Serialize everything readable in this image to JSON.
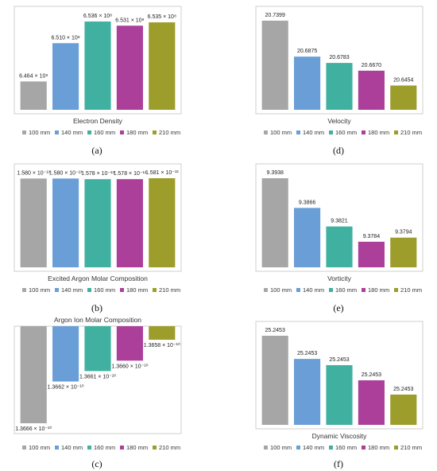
{
  "colors": [
    "#a6a6a6",
    "#6a9ed6",
    "#40b0a0",
    "#ab3f9a",
    "#9d9d2c"
  ],
  "legend": [
    "100 mm",
    "140 mm",
    "160 mm",
    "180 mm",
    "210 mm"
  ],
  "chart_data": [
    {
      "type": "bar",
      "panel": "a",
      "title": "Electron Density",
      "categories": [
        "100 mm",
        "140 mm",
        "160 mm",
        "180 mm",
        "210 mm"
      ],
      "values": [
        646400000.0,
        651000000.0,
        653600000.0,
        653100000.0,
        653500000.0
      ],
      "labels": [
        "6.464 × 10⁸",
        "6.510 × 10⁸",
        "6.536 × 10⁸",
        "6.531 × 10⁸",
        "6.535 × 10⁸"
      ],
      "ylim": [
        643000000.0,
        653700000.0
      ],
      "legend_position": "bottom",
      "grid": false
    },
    {
      "type": "bar",
      "panel": "b",
      "title": "Excited Argon Molar Composition",
      "categories": [
        "100 mm",
        "140 mm",
        "160 mm",
        "180 mm",
        "210 mm"
      ],
      "values": [
        1.58e-13,
        1.58e-13,
        1.578e-13,
        1.578e-13,
        1.581e-13
      ],
      "labels": [
        "1.580 × 10⁻¹³",
        "1.580 × 10⁻¹³",
        "1.578 × 10⁻¹³",
        "1.578 × 10⁻¹³",
        "1.581 × 10⁻¹³"
      ],
      "ylim": [
        1.3e-13,
        1.581e-13
      ],
      "legend_position": "bottom",
      "grid": false
    },
    {
      "type": "bar",
      "panel": "c",
      "title": "Argon Ion Molar Composition",
      "orientation": "hanging",
      "categories": [
        "100 mm",
        "140 mm",
        "160 mm",
        "180 mm",
        "210 mm"
      ],
      "values": [
        1.3666e-10,
        1.3662e-10,
        1.3661e-10,
        1.366e-10,
        1.3658e-10
      ],
      "labels": [
        "1.3666 × 10⁻¹⁰",
        "1.3662 × 10⁻¹⁰",
        "1.3661 × 10⁻¹⁰",
        "1.3660 × 10⁻¹⁰",
        "1.3658 × 10⁻¹⁰"
      ],
      "ylim": [
        1.36567e-10,
        1.3666e-10
      ],
      "legend_position": "bottom",
      "title_position": "top",
      "grid": false
    },
    {
      "type": "bar",
      "panel": "d",
      "title": "Velocity",
      "categories": [
        "100 mm",
        "140 mm",
        "160 mm",
        "180 mm",
        "210 mm"
      ],
      "values": [
        20.7399,
        20.6875,
        20.6783,
        20.667,
        20.6454
      ],
      "labels": [
        "20.7399",
        "20.6875",
        "20.6783",
        "20.6670",
        "20.6454"
      ],
      "ylim": [
        20.61,
        20.7399
      ],
      "legend_position": "bottom",
      "grid": false
    },
    {
      "type": "bar",
      "panel": "e",
      "title": "Vorticity",
      "categories": [
        "100 mm",
        "140 mm",
        "160 mm",
        "180 mm",
        "210 mm"
      ],
      "values": [
        9.3938,
        9.3866,
        9.3821,
        9.3784,
        9.3794
      ],
      "labels": [
        "9.3938",
        "9.3866",
        "9.3821",
        "9.3784",
        "9.3794"
      ],
      "ylim": [
        9.3722,
        9.3938
      ],
      "legend_position": "bottom",
      "grid": false
    },
    {
      "type": "bar",
      "panel": "f",
      "title": "Dynamic Viscosity",
      "categories": [
        "100 mm",
        "140 mm",
        "160 mm",
        "180 mm",
        "210 mm"
      ],
      "values": [
        25.2453,
        25.2453,
        25.2453,
        25.2453,
        25.2453
      ],
      "labels": [
        "25.2453",
        "25.2453",
        "25.2453",
        "25.2453",
        "25.2453"
      ],
      "bar_fraction": [
        1.0,
        0.74,
        0.67,
        0.5,
        0.34
      ],
      "legend_position": "bottom",
      "grid": false
    }
  ],
  "sublabels": [
    "(a)",
    "(b)",
    "(c)",
    "(d)",
    "(e)",
    "(f)"
  ]
}
